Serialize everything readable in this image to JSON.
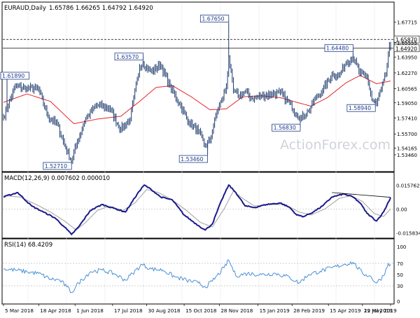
{
  "header": {
    "symbol": "EURAUD,Daily",
    "ohlc": "1.65786 1.66265 1.64792 1.64920",
    "macd_label": "MACD(12,26,9) 0.007602 0.000010",
    "rsi_label": "RSI(14) 68.4209",
    "watermark": "ActionForex.com"
  },
  "colors": {
    "price_bar": "#1f3c6e",
    "ema": "#e8262a",
    "macd": "#1a1a8c",
    "signal": "#a0a0a0",
    "rsi": "#4b90d6",
    "label_border": "#1f3c8a",
    "label_text": "#1f3c8a",
    "grid": "#e6e6e6",
    "axis": "#000000"
  },
  "chart_data": [
    {
      "type": "ohlc",
      "title": "EURAUD,Daily",
      "axis": {
        "ylim": [
          1.518,
          1.686
        ],
        "yticks": [
          "1.67715",
          "1.65555",
          "1.63950",
          "1.62270",
          "1.60565",
          "1.59050",
          "1.57410",
          "1.55700",
          "1.54165",
          "1.53460"
        ],
        "xticks": [
          "5 Mar 2018",
          "18 Apr 2018",
          "1 Jun 2018",
          "17 Jul 2018",
          "30 Aug 2018",
          "15 Oct 2018",
          "28 Nov 2018",
          "15 Jan 2019",
          "28 Feb 2019",
          "15 Apr 2019",
          "29 May 2019",
          "12 Jul 2019"
        ]
      },
      "price_tags": [
        {
          "text": "1.65870",
          "value": 1.6587
        },
        {
          "text": "1.64920",
          "value": 1.6492
        }
      ],
      "annotations": [
        {
          "text": "1.67650",
          "value": 1.6765,
          "date_index": 192
        },
        {
          "text": "1.63570",
          "value": 1.6357,
          "date_index": 119
        },
        {
          "text": "1.52710",
          "value": 1.5271,
          "date_index": 58
        },
        {
          "text": "1.53460",
          "value": 1.5346,
          "date_index": 174
        },
        {
          "text": "1.56830",
          "value": 1.5683,
          "date_index": 253
        },
        {
          "text": "1.64480",
          "value": 1.6448,
          "date_index": 298
        },
        {
          "text": "1.58940",
          "value": 1.5894,
          "date_index": 317
        },
        {
          "text": "1.61890",
          "value": 1.6189,
          "date_index": 3
        }
      ],
      "close_anchors": [
        [
          0,
          1.575
        ],
        [
          10,
          1.608
        ],
        [
          20,
          1.606
        ],
        [
          30,
          1.605
        ],
        [
          38,
          1.575
        ],
        [
          46,
          1.567
        ],
        [
          52,
          1.545
        ],
        [
          58,
          1.528
        ],
        [
          62,
          1.545
        ],
        [
          70,
          1.574
        ],
        [
          80,
          1.588
        ],
        [
          90,
          1.585
        ],
        [
          100,
          1.562
        ],
        [
          108,
          1.573
        ],
        [
          116,
          1.629
        ],
        [
          119,
          1.633
        ],
        [
          126,
          1.624
        ],
        [
          134,
          1.631
        ],
        [
          142,
          1.608
        ],
        [
          150,
          1.589
        ],
        [
          158,
          1.57
        ],
        [
          166,
          1.56
        ],
        [
          172,
          1.544
        ],
        [
          176,
          1.55
        ],
        [
          182,
          1.581
        ],
        [
          186,
          1.593
        ],
        [
          190,
          1.608
        ],
        [
          192,
          1.64
        ],
        [
          196,
          1.603
        ],
        [
          200,
          1.598
        ],
        [
          206,
          1.602
        ],
        [
          212,
          1.595
        ],
        [
          220,
          1.598
        ],
        [
          228,
          1.6
        ],
        [
          236,
          1.601
        ],
        [
          244,
          1.59
        ],
        [
          250,
          1.578
        ],
        [
          254,
          1.574
        ],
        [
          260,
          1.582
        ],
        [
          266,
          1.595
        ],
        [
          272,
          1.604
        ],
        [
          280,
          1.621
        ],
        [
          286,
          1.62
        ],
        [
          292,
          1.634
        ],
        [
          298,
          1.639
        ],
        [
          304,
          1.622
        ],
        [
          310,
          1.618
        ],
        [
          314,
          1.594
        ],
        [
          318,
          1.59
        ],
        [
          322,
          1.605
        ],
        [
          326,
          1.62
        ],
        [
          329,
          1.654
        ],
        [
          330,
          1.6492
        ]
      ],
      "ema_anchors": [
        [
          0,
          1.591
        ],
        [
          20,
          1.6
        ],
        [
          40,
          1.592
        ],
        [
          60,
          1.568
        ],
        [
          80,
          1.573
        ],
        [
          100,
          1.576
        ],
        [
          116,
          1.592
        ],
        [
          130,
          1.607
        ],
        [
          144,
          1.609
        ],
        [
          160,
          1.597
        ],
        [
          176,
          1.583
        ],
        [
          190,
          1.584
        ],
        [
          204,
          1.597
        ],
        [
          220,
          1.598
        ],
        [
          236,
          1.596
        ],
        [
          250,
          1.591
        ],
        [
          262,
          1.587
        ],
        [
          276,
          1.596
        ],
        [
          292,
          1.612
        ],
        [
          304,
          1.62
        ],
        [
          318,
          1.611
        ],
        [
          330,
          1.614
        ]
      ]
    },
    {
      "type": "line",
      "title": "MACD(12,26,9) 0.007602 0.000010",
      "axis": {
        "ylim": [
          -0.0185,
          0.017
        ],
        "yticks": [
          "0.015762",
          "0.00",
          "-0.015834"
        ]
      },
      "series": [
        {
          "name": "MACD",
          "anchors": [
            [
              0,
              0.008
            ],
            [
              12,
              0.011
            ],
            [
              24,
              0.002
            ],
            [
              34,
              -0.002
            ],
            [
              44,
              -0.006
            ],
            [
              52,
              -0.012
            ],
            [
              58,
              -0.017
            ],
            [
              64,
              -0.012
            ],
            [
              74,
              -0.001
            ],
            [
              84,
              0.003
            ],
            [
              96,
              0.0
            ],
            [
              104,
              -0.002
            ],
            [
              114,
              0.01
            ],
            [
              120,
              0.016
            ],
            [
              126,
              0.013
            ],
            [
              134,
              0.008
            ],
            [
              144,
              0.006
            ],
            [
              154,
              -0.004
            ],
            [
              166,
              -0.011
            ],
            [
              172,
              -0.014
            ],
            [
              178,
              -0.01
            ],
            [
              186,
              0.006
            ],
            [
              192,
              0.016
            ],
            [
              198,
              0.011
            ],
            [
              206,
              0.002
            ],
            [
              214,
              0.001
            ],
            [
              224,
              0.003
            ],
            [
              236,
              0.004
            ],
            [
              244,
              0.001
            ],
            [
              250,
              -0.004
            ],
            [
              256,
              -0.005
            ],
            [
              264,
              -0.002
            ],
            [
              272,
              0.002
            ],
            [
              280,
              0.008
            ],
            [
              290,
              0.01
            ],
            [
              298,
              0.008
            ],
            [
              304,
              0.004
            ],
            [
              310,
              -0.003
            ],
            [
              318,
              -0.008
            ],
            [
              324,
              -0.002
            ],
            [
              330,
              0.0076
            ]
          ]
        },
        {
          "name": "Signal",
          "anchors": [
            [
              0,
              0.009
            ],
            [
              14,
              0.008
            ],
            [
              28,
              0.003
            ],
            [
              40,
              -0.002
            ],
            [
              52,
              -0.008
            ],
            [
              62,
              -0.014
            ],
            [
              70,
              -0.009
            ],
            [
              80,
              -0.001
            ],
            [
              90,
              0.002
            ],
            [
              102,
              -0.001
            ],
            [
              112,
              0.004
            ],
            [
              122,
              0.013
            ],
            [
              132,
              0.011
            ],
            [
              144,
              0.006
            ],
            [
              156,
              -0.001
            ],
            [
              168,
              -0.009
            ],
            [
              178,
              -0.012
            ],
            [
              188,
              0.0
            ],
            [
              196,
              0.012
            ],
            [
              204,
              0.007
            ],
            [
              214,
              0.002
            ],
            [
              226,
              0.003
            ],
            [
              240,
              0.003
            ],
            [
              252,
              -0.002
            ],
            [
              262,
              -0.004
            ],
            [
              274,
              0.0
            ],
            [
              286,
              0.007
            ],
            [
              296,
              0.009
            ],
            [
              306,
              0.005
            ],
            [
              316,
              -0.003
            ],
            [
              324,
              -0.005
            ],
            [
              330,
              0.0
            ]
          ]
        }
      ],
      "trendline": [
        [
          280,
          0.011
        ],
        [
          330,
          0.0078
        ]
      ]
    },
    {
      "type": "line",
      "title": "RSI(14) 68.4209",
      "axis": {
        "ylim": [
          0,
          100
        ],
        "yticks": [
          "100",
          "70",
          "50",
          "30",
          "0"
        ]
      },
      "series": [
        {
          "name": "RSI",
          "anchors": [
            [
              0,
              60
            ],
            [
              10,
              58
            ],
            [
              20,
              55
            ],
            [
              30,
              52
            ],
            [
              40,
              42
            ],
            [
              48,
              40
            ],
            [
              54,
              28
            ],
            [
              58,
              18
            ],
            [
              64,
              35
            ],
            [
              74,
              55
            ],
            [
              84,
              58
            ],
            [
              94,
              52
            ],
            [
              104,
              40
            ],
            [
              110,
              52
            ],
            [
              118,
              68
            ],
            [
              126,
              60
            ],
            [
              136,
              58
            ],
            [
              146,
              46
            ],
            [
              156,
              40
            ],
            [
              166,
              35
            ],
            [
              172,
              28
            ],
            [
              178,
              38
            ],
            [
              188,
              62
            ],
            [
              192,
              76
            ],
            [
              198,
              48
            ],
            [
              208,
              52
            ],
            [
              220,
              50
            ],
            [
              232,
              52
            ],
            [
              244,
              45
            ],
            [
              252,
              35
            ],
            [
              260,
              50
            ],
            [
              270,
              56
            ],
            [
              280,
              62
            ],
            [
              290,
              68
            ],
            [
              298,
              72
            ],
            [
              306,
              52
            ],
            [
              312,
              48
            ],
            [
              318,
              35
            ],
            [
              324,
              48
            ],
            [
              328,
              70
            ],
            [
              330,
              68.4
            ]
          ]
        }
      ]
    }
  ]
}
